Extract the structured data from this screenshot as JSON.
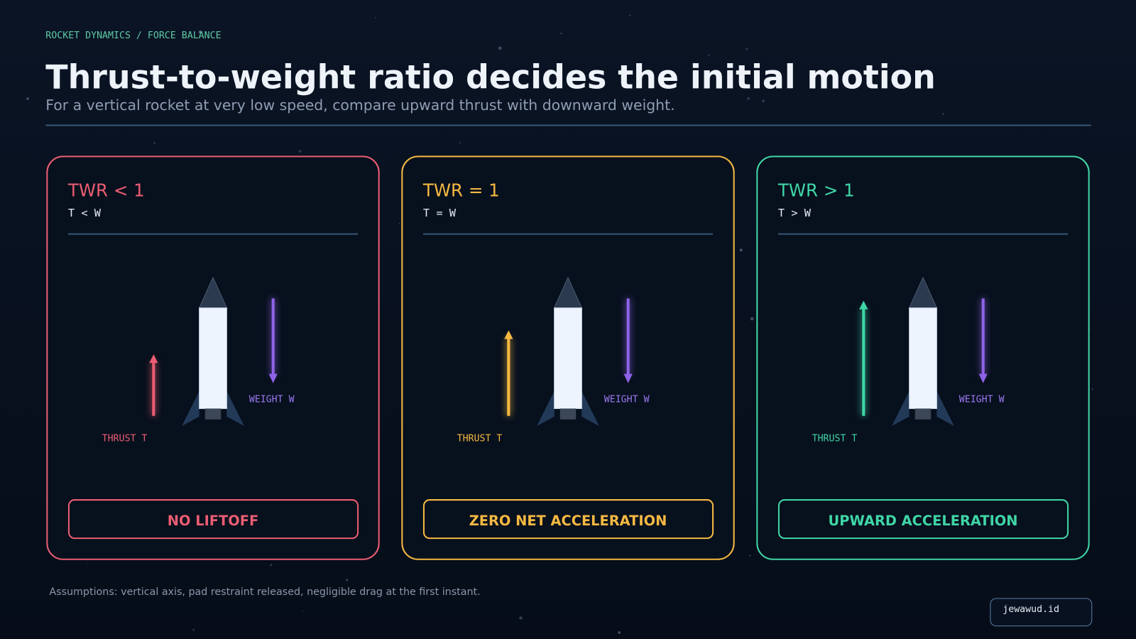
{
  "header": {
    "breadcrumb": "ROCKET DYNAMICS / FORCE BALANCE",
    "title": "Thrust-to-weight ratio decides the initial motion",
    "subtitle": "For a vertical rocket at very low speed, compare upward thrust with downward weight."
  },
  "panels": [
    {
      "title": "TWR < 1",
      "relation": "T < W",
      "thrust_label": "THRUST T",
      "weight_label": "WEIGHT W",
      "outcome": "NO LIFTOFF"
    },
    {
      "title": "TWR = 1",
      "relation": "T = W",
      "thrust_label": "THRUST T",
      "weight_label": "WEIGHT W",
      "outcome": "ZERO NET ACCELERATION"
    },
    {
      "title": "TWR > 1",
      "relation": "T > W",
      "thrust_label": "THRUST T",
      "weight_label": "WEIGHT W",
      "outcome": "UPWARD ACCELERATION"
    }
  ],
  "footer": {
    "assumptions": "Assumptions: vertical axis, pad restraint released, negligible drag at the first instant.",
    "brand": "jewawud.id"
  }
}
